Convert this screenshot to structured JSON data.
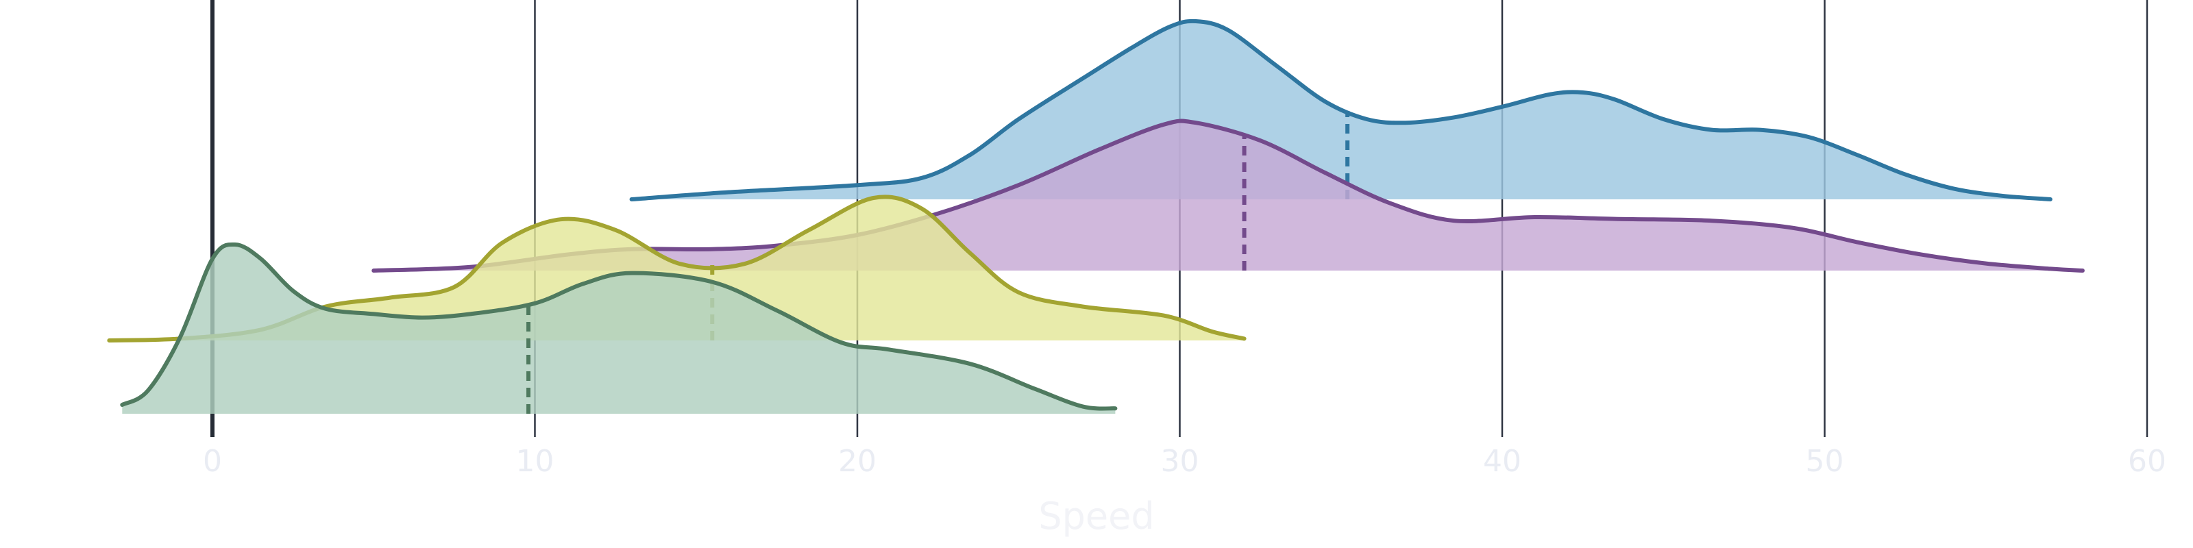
{
  "chart_data": {
    "type": "ridgeline",
    "xlabel": "Speed",
    "ylabel": "",
    "title": "",
    "xlim": [
      -4,
      60
    ],
    "xticks": [
      0,
      10,
      20,
      30,
      40,
      50,
      60
    ],
    "zero_line": 0,
    "grid": "vertical",
    "legend": "none",
    "series": [
      {
        "color": "#2e76a0",
        "fill": "#9cc7e1",
        "median": 35.2,
        "points": [
          [
            13,
            0
          ],
          [
            16,
            0.04
          ],
          [
            20,
            0.08
          ],
          [
            22,
            0.12
          ],
          [
            23.5,
            0.25
          ],
          [
            25,
            0.45
          ],
          [
            27,
            0.68
          ],
          [
            28.5,
            0.85
          ],
          [
            29.7,
            0.97
          ],
          [
            30.5,
            1.0
          ],
          [
            31.5,
            0.95
          ],
          [
            33,
            0.75
          ],
          [
            34.5,
            0.55
          ],
          [
            35.8,
            0.45
          ],
          [
            37,
            0.43
          ],
          [
            38.5,
            0.46
          ],
          [
            40,
            0.52
          ],
          [
            41.5,
            0.59
          ],
          [
            42.5,
            0.6
          ],
          [
            43.5,
            0.56
          ],
          [
            45,
            0.45
          ],
          [
            46.5,
            0.39
          ],
          [
            48,
            0.39
          ],
          [
            49.5,
            0.35
          ],
          [
            51,
            0.25
          ],
          [
            52.5,
            0.14
          ],
          [
            54,
            0.06
          ],
          [
            55.5,
            0.02
          ],
          [
            57,
            0.0
          ]
        ]
      },
      {
        "color": "#734a8c",
        "fill": "#c6a8d4",
        "median": 32,
        "points": [
          [
            5,
            0
          ],
          [
            8,
            0.02
          ],
          [
            11,
            0.09
          ],
          [
            13,
            0.12
          ],
          [
            15.5,
            0.12
          ],
          [
            17.5,
            0.14
          ],
          [
            20,
            0.2
          ],
          [
            22.5,
            0.32
          ],
          [
            25,
            0.48
          ],
          [
            27.5,
            0.68
          ],
          [
            29.5,
            0.82
          ],
          [
            30.5,
            0.83
          ],
          [
            32.5,
            0.73
          ],
          [
            34.5,
            0.55
          ],
          [
            36.5,
            0.38
          ],
          [
            38.5,
            0.28
          ],
          [
            41,
            0.3
          ],
          [
            43.5,
            0.29
          ],
          [
            46.5,
            0.28
          ],
          [
            49,
            0.24
          ],
          [
            51,
            0.16
          ],
          [
            53,
            0.09
          ],
          [
            55,
            0.04
          ],
          [
            57,
            0.01
          ],
          [
            58,
            0.0
          ]
        ]
      },
      {
        "color": "#a3a431",
        "fill": "#e3e699",
        "median": 15.5,
        "points": [
          [
            -3.2,
            0
          ],
          [
            -1,
            0.01
          ],
          [
            1.5,
            0.06
          ],
          [
            3.5,
            0.19
          ],
          [
            5.5,
            0.24
          ],
          [
            7.5,
            0.3
          ],
          [
            9,
            0.55
          ],
          [
            10.8,
            0.68
          ],
          [
            12.5,
            0.62
          ],
          [
            14.5,
            0.43
          ],
          [
            16.5,
            0.43
          ],
          [
            18.5,
            0.62
          ],
          [
            20.5,
            0.8
          ],
          [
            22,
            0.74
          ],
          [
            23.5,
            0.49
          ],
          [
            25,
            0.27
          ],
          [
            27,
            0.19
          ],
          [
            29.5,
            0.14
          ],
          [
            31,
            0.05
          ],
          [
            32,
            0.01
          ]
        ]
      },
      {
        "color": "#4f7a5f",
        "fill": "#b0cfc0",
        "median": 9.8,
        "points": [
          [
            -2.8,
            0.05
          ],
          [
            -2,
            0.13
          ],
          [
            -1,
            0.43
          ],
          [
            0,
            0.87
          ],
          [
            0.7,
            0.95
          ],
          [
            1.5,
            0.87
          ],
          [
            2.5,
            0.69
          ],
          [
            3.5,
            0.59
          ],
          [
            5,
            0.56
          ],
          [
            6.5,
            0.54
          ],
          [
            8,
            0.56
          ],
          [
            10,
            0.62
          ],
          [
            11.5,
            0.73
          ],
          [
            13,
            0.79
          ],
          [
            15.5,
            0.74
          ],
          [
            17.5,
            0.58
          ],
          [
            19.5,
            0.4
          ],
          [
            21,
            0.36
          ],
          [
            23.5,
            0.28
          ],
          [
            25.5,
            0.14
          ],
          [
            27,
            0.04
          ],
          [
            28,
            0.03
          ]
        ]
      }
    ]
  }
}
